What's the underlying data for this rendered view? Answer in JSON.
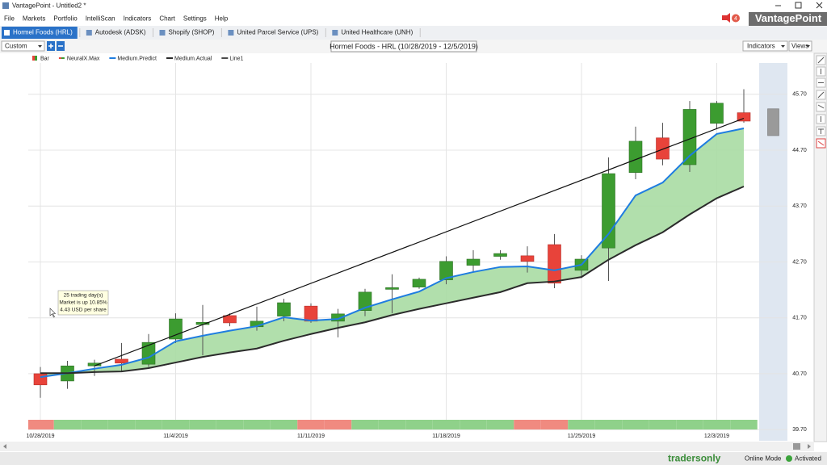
{
  "window": {
    "title": "VantagePoint - Untitled2 *"
  },
  "menu": [
    "File",
    "Markets",
    "Portfolio",
    "IntelliScan",
    "Indicators",
    "Chart",
    "Settings",
    "Help"
  ],
  "notification_count": 4,
  "brand": "VantagePoint",
  "tabs": [
    "Hormel Foods (HRL)",
    "Autodesk (ADSK)",
    "Shopify (SHOP)",
    "United Parcel Service (UPS)",
    "United Healthcare (UNH)"
  ],
  "toolbar": {
    "layout": "Custom",
    "indicators": "Indicators",
    "views": "Views"
  },
  "chart_data": {
    "type": "candlestick",
    "title": "Hormel Foods - HRL (10/28/2019 - 12/5/2019)",
    "categories": [
      "10/28/2019",
      null,
      null,
      null,
      null,
      "11/4/2019",
      null,
      null,
      null,
      null,
      "11/11/2019",
      null,
      null,
      null,
      null,
      "11/18/2019",
      null,
      null,
      null,
      null,
      "11/25/2019",
      null,
      null,
      null,
      null,
      "12/3/2019",
      null
    ],
    "ohlc": {
      "name": "Bar",
      "up_color": "#3c9c30",
      "down_color": "#e8433a",
      "open": [
        40.7,
        40.57,
        40.84,
        40.96,
        40.87,
        41.32,
        41.58,
        41.74,
        41.54,
        41.73,
        41.91,
        41.64,
        41.83,
        42.21,
        42.25,
        42.38,
        42.64,
        42.8,
        42.81,
        43.01,
        42.55,
        42.95,
        44.3,
        44.92,
        44.44,
        45.18,
        45.37
      ],
      "high": [
        40.82,
        40.93,
        40.95,
        41.25,
        41.41,
        41.78,
        41.93,
        41.78,
        41.9,
        42.04,
        41.96,
        41.86,
        42.22,
        42.48,
        42.42,
        42.8,
        42.91,
        42.91,
        42.98,
        43.2,
        42.82,
        44.57,
        45.12,
        45.19,
        45.58,
        45.58,
        45.79
      ],
      "low": [
        40.27,
        40.43,
        40.66,
        40.74,
        40.82,
        41.25,
        41.03,
        41.55,
        41.47,
        41.64,
        41.61,
        41.35,
        41.73,
        41.78,
        42.22,
        42.3,
        42.51,
        42.74,
        42.51,
        42.23,
        42.41,
        42.36,
        44.18,
        44.43,
        44.31,
        45.08,
        45.19
      ],
      "close": [
        40.5,
        40.84,
        40.89,
        40.89,
        41.26,
        41.68,
        41.62,
        41.61,
        41.64,
        41.97,
        41.64,
        41.77,
        42.16,
        42.24,
        42.39,
        42.71,
        42.75,
        42.85,
        42.71,
        42.32,
        42.75,
        44.28,
        44.86,
        44.54,
        45.43,
        45.54,
        45.22
      ]
    },
    "neuralx": {
      "name": "NeuralX.Max",
      "colors": [
        "#f08a80",
        "#8fd18a",
        "#8fd18a",
        "#8fd18a",
        "#8fd18a",
        "#8fd18a",
        "#8fd18a",
        "#8fd18a",
        "#8fd18a",
        "#8fd18a",
        "#f08a80",
        "#f08a80",
        "#8fd18a",
        "#8fd18a",
        "#8fd18a",
        "#8fd18a",
        "#8fd18a",
        "#8fd18a",
        "#f08a80",
        "#f08a80",
        "#8fd18a",
        "#8fd18a",
        "#8fd18a",
        "#8fd18a",
        "#8fd18a",
        "#8fd18a",
        "#8fd18a"
      ]
    },
    "series": [
      {
        "name": "Medium.Predict",
        "color": "#1f7de0",
        "values": [
          40.64,
          40.71,
          40.79,
          40.86,
          40.99,
          41.28,
          41.38,
          41.47,
          41.55,
          41.71,
          41.65,
          41.68,
          41.88,
          42.03,
          42.17,
          42.41,
          42.52,
          42.61,
          42.62,
          42.55,
          42.65,
          43.2,
          43.89,
          44.12,
          44.6,
          44.99,
          45.09
        ]
      },
      {
        "name": "Medium.Actual",
        "color": "#2b2b2b",
        "values": [
          40.71,
          40.71,
          40.73,
          40.74,
          40.8,
          40.9,
          41.0,
          41.08,
          41.15,
          41.29,
          41.41,
          41.52,
          41.62,
          41.75,
          41.86,
          41.96,
          42.06,
          42.16,
          42.32,
          42.35,
          42.43,
          42.74,
          43.0,
          43.23,
          43.55,
          43.84,
          44.05
        ]
      }
    ],
    "band_color": "#a9dba3",
    "trendline": {
      "name": "Line1",
      "color": "#111111",
      "x": [
        2,
        26
      ],
      "values": [
        40.84,
        45.27
      ]
    },
    "forecast": {
      "high": 45.44,
      "low": 44.96,
      "color": "#9a9a9a"
    },
    "annotation": [
      "25 trading day(s)",
      "Market is up 10.85%",
      "4.43 USD per share"
    ],
    "ylim": [
      39.5,
      46.26
    ],
    "yticks": [
      {
        "value": 39.7,
        "label": "39.70"
      },
      {
        "value": 40.7,
        "label": "40.70"
      },
      {
        "value": 41.7,
        "label": "41.70"
      },
      {
        "value": 42.7,
        "label": "42.70"
      },
      {
        "value": 43.7,
        "label": "43.70"
      },
      {
        "value": 44.7,
        "label": "44.70"
      },
      {
        "value": 45.7,
        "label": "45.70"
      }
    ],
    "grid": true
  },
  "status": {
    "brand": "tradersonly",
    "mode": "Online Mode",
    "state": "Activated"
  }
}
